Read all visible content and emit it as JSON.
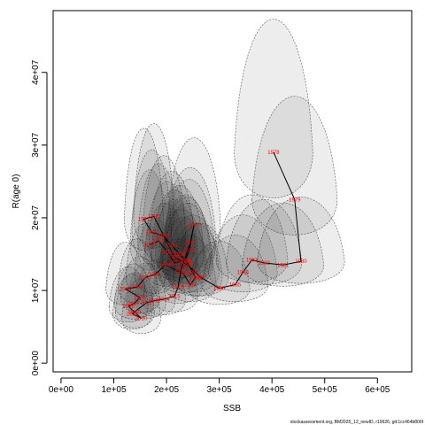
{
  "chart_data": {
    "type": "scatter",
    "title": "",
    "xlabel": "SSB",
    "ylabel": "R(age 0)",
    "xlim": [
      -15000,
      665000
    ],
    "ylim": [
      -1200000,
      48500000
    ],
    "x_ticks": [
      {
        "value": 0,
        "label": "0e+00"
      },
      {
        "value": 100000,
        "label": "1e+05"
      },
      {
        "value": 200000,
        "label": "2e+05"
      },
      {
        "value": 300000,
        "label": "3e+05"
      },
      {
        "value": 400000,
        "label": "4e+05"
      },
      {
        "value": 500000,
        "label": "5e+05"
      },
      {
        "value": 600000,
        "label": "6e+05"
      }
    ],
    "y_ticks": [
      {
        "value": 0,
        "label": "0e+00"
      },
      {
        "value": 10000000,
        "label": "1e+07"
      },
      {
        "value": 20000000,
        "label": "2e+07"
      },
      {
        "value": 30000000,
        "label": "3e+07"
      },
      {
        "value": 40000000,
        "label": "4e+07"
      }
    ],
    "points": [
      {
        "label": "1978",
        "x": 403000,
        "y": 29000000
      },
      {
        "label": "1979",
        "x": 443000,
        "y": 22500000
      },
      {
        "label": "1980",
        "x": 455000,
        "y": 14000000
      },
      {
        "label": "1981",
        "x": 421000,
        "y": 13500000
      },
      {
        "label": "1982",
        "x": 385000,
        "y": 13800000
      },
      {
        "label": "1983",
        "x": 362000,
        "y": 14200000
      },
      {
        "label": "1984",
        "x": 345000,
        "y": 12500000
      },
      {
        "label": "1985",
        "x": 330000,
        "y": 10800000
      },
      {
        "label": "1986",
        "x": 300000,
        "y": 10300000
      },
      {
        "label": "1987",
        "x": 265000,
        "y": 11800000
      },
      {
        "label": "1988",
        "x": 240000,
        "y": 13500000
      },
      {
        "label": "1989",
        "x": 215000,
        "y": 14600000
      },
      {
        "label": "1990",
        "x": 176000,
        "y": 20200000
      },
      {
        "label": "1991",
        "x": 157000,
        "y": 19800000
      },
      {
        "label": "1992",
        "x": 172000,
        "y": 18000000
      },
      {
        "label": "1993",
        "x": 195000,
        "y": 17500000
      },
      {
        "label": "1994",
        "x": 210000,
        "y": 16200000
      },
      {
        "label": "1995",
        "x": 225000,
        "y": 15000000
      },
      {
        "label": "1996",
        "x": 238000,
        "y": 14000000
      },
      {
        "label": "1997",
        "x": 250000,
        "y": 12500000
      },
      {
        "label": "1998",
        "x": 255000,
        "y": 11800000
      },
      {
        "label": "1999",
        "x": 245000,
        "y": 10800000
      },
      {
        "label": "2000",
        "x": 232000,
        "y": 12300000
      },
      {
        "label": "2001",
        "x": 198000,
        "y": 13500000
      },
      {
        "label": "2002",
        "x": 178000,
        "y": 12200000
      },
      {
        "label": "2003",
        "x": 160000,
        "y": 11800000
      },
      {
        "label": "2004",
        "x": 145000,
        "y": 10500000
      },
      {
        "label": "2005",
        "x": 122000,
        "y": 10200000
      },
      {
        "label": "2006",
        "x": 150000,
        "y": 9000000
      },
      {
        "label": "2007",
        "x": 138000,
        "y": 8200000
      },
      {
        "label": "2008",
        "x": 128000,
        "y": 7800000
      },
      {
        "label": "2009",
        "x": 140000,
        "y": 7000000
      },
      {
        "label": "2010",
        "x": 152000,
        "y": 6200000
      },
      {
        "label": "2011",
        "x": 135000,
        "y": 6800000
      },
      {
        "label": "2012",
        "x": 162000,
        "y": 8300000
      },
      {
        "label": "2013",
        "x": 178000,
        "y": 8600000
      },
      {
        "label": "2014",
        "x": 195000,
        "y": 8800000
      },
      {
        "label": "2015",
        "x": 215000,
        "y": 9200000
      },
      {
        "label": "2016",
        "x": 222000,
        "y": 10500000
      },
      {
        "label": "2017",
        "x": 228000,
        "y": 13000000
      },
      {
        "label": "2018",
        "x": 245000,
        "y": 16500000
      },
      {
        "label": "2019",
        "x": 252000,
        "y": 19000000
      },
      {
        "label": "2020",
        "x": 243000,
        "y": 15500000
      },
      {
        "label": "2021",
        "x": 236000,
        "y": 14200000
      },
      {
        "label": "2022",
        "x": 215000,
        "y": 13800000
      },
      {
        "label": "2023",
        "x": 202000,
        "y": 15300000
      },
      {
        "label": "2024",
        "x": 185000,
        "y": 16800000
      },
      {
        "label": "2025",
        "x": 168000,
        "y": 16300000
      }
    ],
    "grid": false,
    "legend": "none"
  },
  "footer": {
    "text": "stockassessment.org, BM2025_12_newID, r19626, git:1cc464b806f"
  }
}
